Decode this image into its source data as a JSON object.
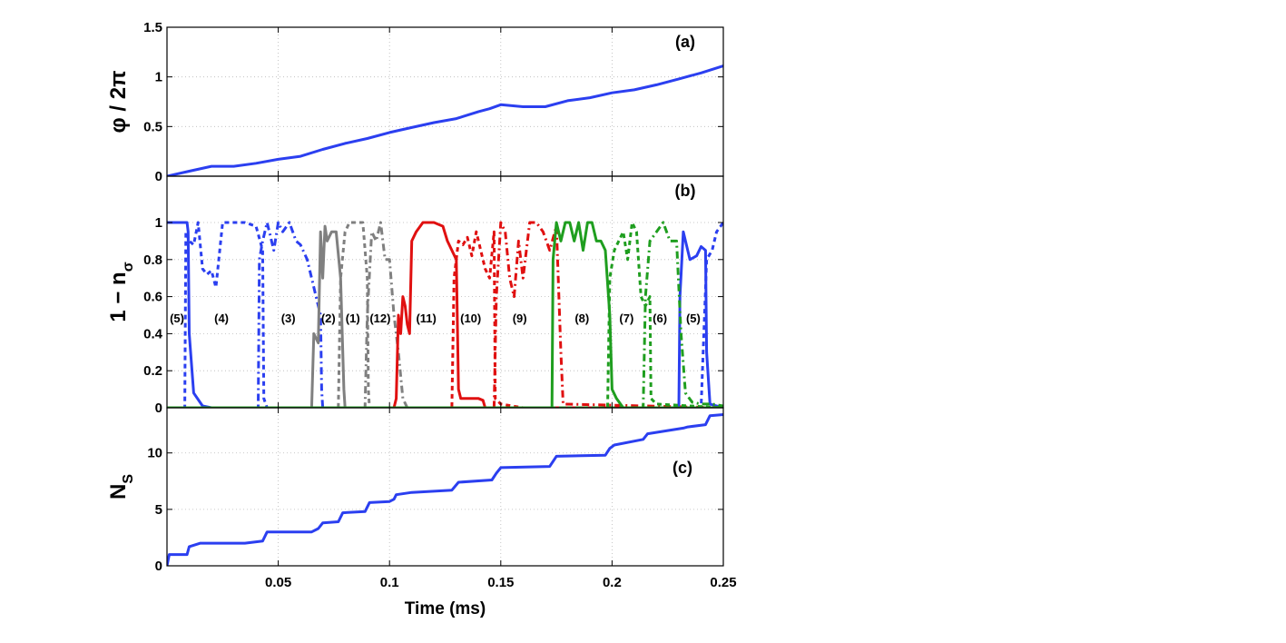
{
  "chart_data": [
    {
      "panel": "(a)",
      "type": "line",
      "ylabel": "φ / 2π",
      "ylim": [
        0,
        1.5
      ],
      "yticks": [
        "0",
        "0.5",
        "1",
        "1.5"
      ],
      "grid": true,
      "series": [
        {
          "color": "#2b3ff0",
          "x": [
            0,
            0.01,
            0.02,
            0.03,
            0.04,
            0.05,
            0.06,
            0.07,
            0.08,
            0.09,
            0.1,
            0.11,
            0.12,
            0.13,
            0.14,
            0.145,
            0.15,
            0.16,
            0.17,
            0.18,
            0.19,
            0.2,
            0.21,
            0.22,
            0.23,
            0.24,
            0.25
          ],
          "y": [
            0,
            0.05,
            0.1,
            0.1,
            0.13,
            0.17,
            0.2,
            0.27,
            0.33,
            0.38,
            0.44,
            0.49,
            0.54,
            0.58,
            0.65,
            0.68,
            0.72,
            0.7,
            0.7,
            0.76,
            0.79,
            0.84,
            0.87,
            0.92,
            0.98,
            1.04,
            1.11
          ]
        }
      ]
    },
    {
      "panel": "(b)",
      "type": "line",
      "ylabel": "1 − n",
      "ylabel_sub": "σ",
      "ylim": [
        0,
        1.25
      ],
      "yticks": [
        "0",
        "0.2",
        "0.4",
        "0.6",
        "0.8",
        "1"
      ],
      "grid": true,
      "segment_labels": [
        {
          "text": "(5)",
          "x": 0.0045
        },
        {
          "text": "(4)",
          "x": 0.0245
        },
        {
          "text": "(3)",
          "x": 0.0545
        },
        {
          "text": "(2)",
          "x": 0.0725
        },
        {
          "text": "(1)",
          "x": 0.0835
        },
        {
          "text": "(12)",
          "x": 0.0958
        },
        {
          "text": "(11)",
          "x": 0.1165
        },
        {
          "text": "(10)",
          "x": 0.1365
        },
        {
          "text": "(9)",
          "x": 0.1585
        },
        {
          "text": "(8)",
          "x": 0.1865
        },
        {
          "text": "(7)",
          "x": 0.2065
        },
        {
          "text": "(6)",
          "x": 0.2215
        },
        {
          "text": "(5)",
          "x": 0.2365
        }
      ],
      "series": [
        {
          "color": "#2b3ff0",
          "dash": "solid",
          "x": [
            0,
            0.009,
            0.0095,
            0.01,
            0.012,
            0.016,
            0.02,
            0.2,
            0.23,
            0.2305,
            0.232,
            0.235,
            0.238,
            0.24,
            0.242,
            0.2425,
            0.244,
            0.25
          ],
          "y": [
            1,
            1,
            0.95,
            0.4,
            0.08,
            0.01,
            0,
            0,
            0,
            0.6,
            0.95,
            0.8,
            0.82,
            0.87,
            0.85,
            0.3,
            0.02,
            0
          ]
        },
        {
          "color": "#2b3ff0",
          "dash": "5,4",
          "x": [
            0,
            0.008,
            0.0085,
            0.01,
            0.012,
            0.014,
            0.016,
            0.018,
            0.02,
            0.022,
            0.025,
            0.03,
            0.035,
            0.04,
            0.043,
            0.0435,
            0.045,
            0.1,
            0.24,
            0.2425,
            0.245,
            0.247,
            0.25
          ],
          "y": [
            0,
            0,
            0.95,
            0.9,
            0.88,
            1.0,
            0.75,
            0.72,
            0.74,
            0.65,
            1.0,
            1.0,
            1.0,
            0.98,
            0.85,
            0.05,
            0,
            0,
            0,
            0.8,
            0.85,
            0.95,
            1.0
          ]
        },
        {
          "color": "#2b3ff0",
          "dash": "8,4,2,4",
          "x": [
            0,
            0.041,
            0.0415,
            0.043,
            0.045,
            0.048,
            0.05,
            0.052,
            0.055,
            0.058,
            0.06,
            0.063,
            0.066,
            0.069,
            0.0695,
            0.07,
            0.25
          ],
          "y": [
            0,
            0,
            0.8,
            0.9,
            1.0,
            0.85,
            1.0,
            0.95,
            1.0,
            0.9,
            0.88,
            0.8,
            0.65,
            0.5,
            0.1,
            0,
            0
          ]
        },
        {
          "color": "#808080",
          "dash": "solid",
          "x": [
            0,
            0.065,
            0.066,
            0.068,
            0.069,
            0.07,
            0.071,
            0.072,
            0.074,
            0.076,
            0.078,
            0.0795,
            0.08,
            0.25
          ],
          "y": [
            0,
            0,
            0.4,
            0.35,
            0.95,
            0.7,
            0.98,
            0.9,
            0.95,
            0.95,
            0.7,
            0.1,
            0,
            0
          ]
        },
        {
          "color": "#808080",
          "dash": "5,4",
          "x": [
            0,
            0.077,
            0.078,
            0.08,
            0.082,
            0.085,
            0.088,
            0.09,
            0.0905,
            0.091,
            0.25
          ],
          "y": [
            0,
            0,
            0.7,
            0.95,
            1.0,
            1.0,
            1.0,
            0.7,
            0.1,
            0,
            0
          ]
        },
        {
          "color": "#808080",
          "dash": "8,4,2,4",
          "x": [
            0,
            0.089,
            0.09,
            0.092,
            0.094,
            0.096,
            0.098,
            0.1,
            0.102,
            0.104,
            0.106,
            0.108,
            0.25
          ],
          "y": [
            0,
            0,
            0.5,
            0.95,
            0.9,
            1.0,
            0.8,
            0.8,
            0.5,
            0.3,
            0.05,
            0,
            0
          ]
        },
        {
          "color": "#e01010",
          "dash": "solid",
          "x": [
            0,
            0.102,
            0.103,
            0.104,
            0.105,
            0.106,
            0.107,
            0.108,
            0.109,
            0.11,
            0.112,
            0.115,
            0.12,
            0.124,
            0.126,
            0.128,
            0.13,
            0.131,
            0.132,
            0.135,
            0.14,
            0.142,
            0.143,
            0.25
          ],
          "y": [
            0,
            0,
            0.05,
            0.5,
            0.4,
            0.6,
            0.55,
            0.45,
            0.4,
            0.9,
            0.95,
            1.0,
            1.0,
            0.98,
            0.9,
            0.85,
            0.8,
            0.1,
            0.05,
            0.05,
            0.05,
            0.04,
            0,
            0
          ]
        },
        {
          "color": "#e01010",
          "dash": "5,4",
          "x": [
            0,
            0.128,
            0.129,
            0.131,
            0.133,
            0.135,
            0.137,
            0.139,
            0.141,
            0.143,
            0.145,
            0.147,
            0.1475,
            0.15,
            0.16,
            0.25
          ],
          "y": [
            0,
            0,
            0.7,
            0.9,
            0.88,
            0.92,
            0.82,
            0.95,
            0.85,
            0.75,
            0.7,
            0.95,
            0.05,
            0.02,
            0,
            0
          ]
        },
        {
          "color": "#e01010",
          "dash": "8,4,2,4",
          "x": [
            0,
            0.147,
            0.148,
            0.15,
            0.152,
            0.154,
            0.156,
            0.158,
            0.16,
            0.163,
            0.166,
            0.169,
            0.172,
            0.175,
            0.177,
            0.178,
            0.25
          ],
          "y": [
            0,
            0,
            0.6,
            1.0,
            0.95,
            0.7,
            0.6,
            0.9,
            0.7,
            1.0,
            1.0,
            0.95,
            0.85,
            0.98,
            0.3,
            0.02,
            0
          ]
        },
        {
          "color": "#1f9e1f",
          "dash": "solid",
          "x": [
            0,
            0.173,
            0.1735,
            0.175,
            0.177,
            0.179,
            0.181,
            0.183,
            0.185,
            0.187,
            0.189,
            0.191,
            0.193,
            0.195,
            0.197,
            0.199,
            0.2,
            0.202,
            0.205,
            0.25
          ],
          "y": [
            0,
            0,
            0.8,
            1.0,
            0.9,
            1.0,
            1.0,
            0.9,
            1.0,
            0.85,
            1.0,
            1.0,
            0.9,
            0.9,
            0.85,
            0.5,
            0.1,
            0.05,
            0,
            0
          ]
        },
        {
          "color": "#1f9e1f",
          "dash": "5,4",
          "x": [
            0,
            0.198,
            0.199,
            0.201,
            0.203,
            0.205,
            0.207,
            0.209,
            0.211,
            0.213,
            0.215,
            0.217,
            0.2175,
            0.22,
            0.25
          ],
          "y": [
            0,
            0,
            0.7,
            0.85,
            0.9,
            0.95,
            0.8,
            1.0,
            0.95,
            0.6,
            0.55,
            0.6,
            0.05,
            0.02,
            0
          ]
        },
        {
          "color": "#1f9e1f",
          "dash": "8,4,2,4",
          "x": [
            0,
            0.214,
            0.215,
            0.217,
            0.22,
            0.223,
            0.226,
            0.229,
            0.231,
            0.233,
            0.236,
            0.24,
            0.245,
            0.25
          ],
          "y": [
            0,
            0,
            0.6,
            0.9,
            0.95,
            1.0,
            0.9,
            0.9,
            0.4,
            0.08,
            0.03,
            0.02,
            0.02,
            0.01
          ]
        }
      ]
    },
    {
      "panel": "(c)",
      "type": "line",
      "ylabel": "N",
      "ylabel_sub": "S",
      "ylim": [
        0,
        14
      ],
      "yticks": [
        "0",
        "5",
        "10"
      ],
      "xlabel": "Time  (ms)",
      "xlim": [
        0,
        0.25
      ],
      "xticks": [
        "0.05",
        "0.1",
        "0.15",
        "0.2",
        "0.25"
      ],
      "grid": true,
      "series": [
        {
          "color": "#2b3ff0",
          "x": [
            0,
            0.001,
            0.002,
            0.009,
            0.01,
            0.015,
            0.025,
            0.035,
            0.043,
            0.045,
            0.065,
            0.068,
            0.07,
            0.077,
            0.079,
            0.089,
            0.091,
            0.1,
            0.102,
            0.103,
            0.11,
            0.128,
            0.131,
            0.146,
            0.148,
            0.15,
            0.172,
            0.175,
            0.197,
            0.199,
            0.201,
            0.214,
            0.216,
            0.232,
            0.234,
            0.242,
            0.244,
            0.25
          ],
          "y": [
            0,
            1,
            1,
            1,
            1.7,
            2,
            2,
            2,
            2.2,
            3,
            3,
            3.3,
            3.8,
            3.9,
            4.7,
            4.8,
            5.6,
            5.7,
            5.9,
            6.3,
            6.5,
            6.7,
            7.4,
            7.6,
            8.2,
            8.7,
            8.8,
            9.7,
            9.8,
            10.4,
            10.7,
            11.2,
            11.7,
            12.2,
            12.3,
            12.5,
            13.3,
            13.4
          ]
        }
      ]
    }
  ]
}
